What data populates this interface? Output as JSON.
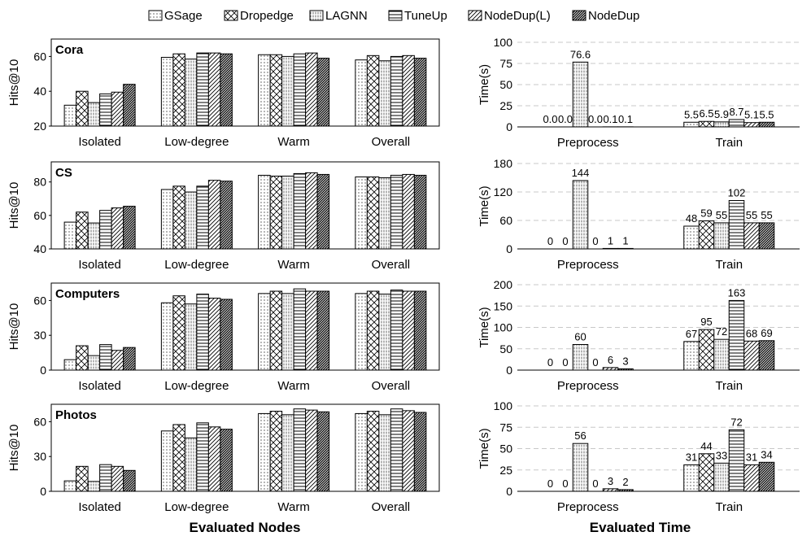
{
  "legend": [
    "GSage",
    "Dropedge",
    "LAGNN",
    "TuneUp",
    "NodeDup(L)",
    "NodeDup"
  ],
  "colors": {
    "stroke": "#000000",
    "grid": "#c8c8c8",
    "fill": "#ffffff"
  },
  "x_titles": {
    "left": "Evaluated Nodes",
    "right": "Evaluated Time"
  },
  "chart_data": [
    {
      "type": "bar",
      "title": "Cora",
      "ylabel": "Hits@10",
      "categories": [
        "Isolated",
        "Low-degree",
        "Warm",
        "Overall"
      ],
      "ylim": [
        20,
        70
      ],
      "yticks": [
        20,
        40,
        60
      ],
      "grid": false,
      "series": [
        {
          "name": "GSage",
          "values": [
            32,
            59.5,
            61,
            58
          ]
        },
        {
          "name": "Dropedge",
          "values": [
            40,
            61.5,
            61,
            60.5
          ]
        },
        {
          "name": "LAGNN",
          "values": [
            33.5,
            58.5,
            60,
            57.5
          ]
        },
        {
          "name": "TuneUp",
          "values": [
            38.5,
            62,
            61.5,
            60
          ]
        },
        {
          "name": "NodeDup(L)",
          "values": [
            39.5,
            62,
            62,
            60.5
          ]
        },
        {
          "name": "NodeDup",
          "values": [
            44,
            61.5,
            59,
            59
          ]
        }
      ]
    },
    {
      "type": "bar",
      "title": "CS",
      "ylabel": "Hits@10",
      "categories": [
        "Isolated",
        "Low-degree",
        "Warm",
        "Overall"
      ],
      "ylim": [
        40,
        92
      ],
      "yticks": [
        40,
        60,
        80
      ],
      "grid": false,
      "series": [
        {
          "name": "GSage",
          "values": [
            56,
            75.5,
            84,
            83
          ]
        },
        {
          "name": "Dropedge",
          "values": [
            62,
            77.5,
            83.5,
            83
          ]
        },
        {
          "name": "LAGNN",
          "values": [
            55.5,
            74,
            83.5,
            82.5
          ]
        },
        {
          "name": "TuneUp",
          "values": [
            63,
            77.5,
            85,
            84
          ]
        },
        {
          "name": "NodeDup(L)",
          "values": [
            64.5,
            81,
            85.5,
            84.5
          ]
        },
        {
          "name": "NodeDup",
          "values": [
            65.5,
            80.5,
            84.5,
            84
          ]
        }
      ]
    },
    {
      "type": "bar",
      "title": "Computers",
      "ylabel": "Hits@10",
      "categories": [
        "Isolated",
        "Low-degree",
        "Warm",
        "Overall"
      ],
      "ylim": [
        0,
        75
      ],
      "yticks": [
        0,
        30,
        60
      ],
      "grid": false,
      "series": [
        {
          "name": "GSage",
          "values": [
            9,
            58,
            66,
            66
          ]
        },
        {
          "name": "Dropedge",
          "values": [
            21,
            64,
            68,
            68
          ]
        },
        {
          "name": "LAGNN",
          "values": [
            12.5,
            57,
            66,
            65.5
          ]
        },
        {
          "name": "TuneUp",
          "values": [
            22,
            65.5,
            70,
            69
          ]
        },
        {
          "name": "NodeDup(L)",
          "values": [
            17,
            62,
            68,
            68
          ]
        },
        {
          "name": "NodeDup",
          "values": [
            19.5,
            61,
            68,
            68
          ]
        }
      ]
    },
    {
      "type": "bar",
      "title": "Photos",
      "ylabel": "Hits@10",
      "categories": [
        "Isolated",
        "Low-degree",
        "Warm",
        "Overall"
      ],
      "ylim": [
        0,
        75
      ],
      "yticks": [
        0,
        30,
        60
      ],
      "grid": false,
      "series": [
        {
          "name": "GSage",
          "values": [
            9,
            52,
            67,
            67
          ]
        },
        {
          "name": "Dropedge",
          "values": [
            21.5,
            57.5,
            69,
            69
          ]
        },
        {
          "name": "LAGNN",
          "values": [
            8.5,
            46,
            66,
            66
          ]
        },
        {
          "name": "TuneUp",
          "values": [
            23,
            59,
            71,
            71
          ]
        },
        {
          "name": "NodeDup(L)",
          "values": [
            21.5,
            55.5,
            70,
            69.5
          ]
        },
        {
          "name": "NodeDup",
          "values": [
            18,
            53.5,
            68.5,
            68
          ]
        }
      ]
    },
    {
      "type": "bar",
      "title": "",
      "ylabel": "Time(s)",
      "categories": [
        "Preprocess",
        "Train"
      ],
      "ylim": [
        0,
        100
      ],
      "yticks": [
        0,
        25,
        50,
        75,
        100
      ],
      "grid": true,
      "series": [
        {
          "name": "GSage",
          "values": [
            0,
            5.5
          ],
          "labels": [
            "0.0",
            "5.5"
          ]
        },
        {
          "name": "Dropedge",
          "values": [
            0,
            6.5
          ],
          "labels": [
            "0.0",
            "6.5"
          ]
        },
        {
          "name": "LAGNN",
          "values": [
            76.6,
            5.9
          ],
          "labels": [
            "76.6",
            "5.9"
          ]
        },
        {
          "name": "TuneUp",
          "values": [
            0,
            8.7
          ],
          "labels": [
            "0.0",
            "8.7"
          ]
        },
        {
          "name": "NodeDup(L)",
          "values": [
            0.1,
            5.1
          ],
          "labels": [
            "0.1",
            "5.1"
          ]
        },
        {
          "name": "NodeDup",
          "values": [
            0.1,
            5.5
          ],
          "labels": [
            "0.1",
            "5.5"
          ]
        }
      ]
    },
    {
      "type": "bar",
      "title": "",
      "ylabel": "Time(s)",
      "categories": [
        "Preprocess",
        "Train"
      ],
      "ylim": [
        0,
        180
      ],
      "yticks": [
        0,
        60,
        120,
        180
      ],
      "grid": true,
      "series": [
        {
          "name": "GSage",
          "values": [
            0,
            48
          ],
          "labels": [
            "0",
            "48"
          ]
        },
        {
          "name": "Dropedge",
          "values": [
            0,
            59
          ],
          "labels": [
            "0",
            "59"
          ]
        },
        {
          "name": "LAGNN",
          "values": [
            144,
            55
          ],
          "labels": [
            "144",
            "55"
          ]
        },
        {
          "name": "TuneUp",
          "values": [
            0,
            102
          ],
          "labels": [
            "0",
            "102"
          ]
        },
        {
          "name": "NodeDup(L)",
          "values": [
            1,
            55
          ],
          "labels": [
            "1",
            "55"
          ]
        },
        {
          "name": "NodeDup",
          "values": [
            1,
            55
          ],
          "labels": [
            "1",
            "55"
          ]
        }
      ]
    },
    {
      "type": "bar",
      "title": "",
      "ylabel": "Time(s)",
      "categories": [
        "Preprocess",
        "Train"
      ],
      "ylim": [
        0,
        200
      ],
      "yticks": [
        0,
        50,
        100,
        150,
        200
      ],
      "grid": true,
      "series": [
        {
          "name": "GSage",
          "values": [
            0,
            67
          ],
          "labels": [
            "0",
            "67"
          ]
        },
        {
          "name": "Dropedge",
          "values": [
            0,
            95
          ],
          "labels": [
            "0",
            "95"
          ]
        },
        {
          "name": "LAGNN",
          "values": [
            60,
            72
          ],
          "labels": [
            "60",
            "72"
          ]
        },
        {
          "name": "TuneUp",
          "values": [
            0,
            163
          ],
          "labels": [
            "0",
            "163"
          ]
        },
        {
          "name": "NodeDup(L)",
          "values": [
            6,
            68
          ],
          "labels": [
            "6",
            "68"
          ]
        },
        {
          "name": "NodeDup",
          "values": [
            3,
            69
          ],
          "labels": [
            "3",
            "69"
          ]
        }
      ]
    },
    {
      "type": "bar",
      "title": "",
      "ylabel": "Time(s)",
      "categories": [
        "Preprocess",
        "Train"
      ],
      "ylim": [
        0,
        100
      ],
      "yticks": [
        0,
        25,
        50,
        75,
        100
      ],
      "grid": true,
      "series": [
        {
          "name": "GSage",
          "values": [
            0,
            31
          ],
          "labels": [
            "0",
            "31"
          ]
        },
        {
          "name": "Dropedge",
          "values": [
            0,
            44
          ],
          "labels": [
            "0",
            "44"
          ]
        },
        {
          "name": "LAGNN",
          "values": [
            56,
            33
          ],
          "labels": [
            "56",
            "33"
          ]
        },
        {
          "name": "TuneUp",
          "values": [
            0,
            72
          ],
          "labels": [
            "0",
            "72"
          ]
        },
        {
          "name": "NodeDup(L)",
          "values": [
            3,
            31
          ],
          "labels": [
            "3",
            "31"
          ]
        },
        {
          "name": "NodeDup",
          "values": [
            2,
            34
          ],
          "labels": [
            "2",
            "34"
          ]
        }
      ]
    }
  ]
}
